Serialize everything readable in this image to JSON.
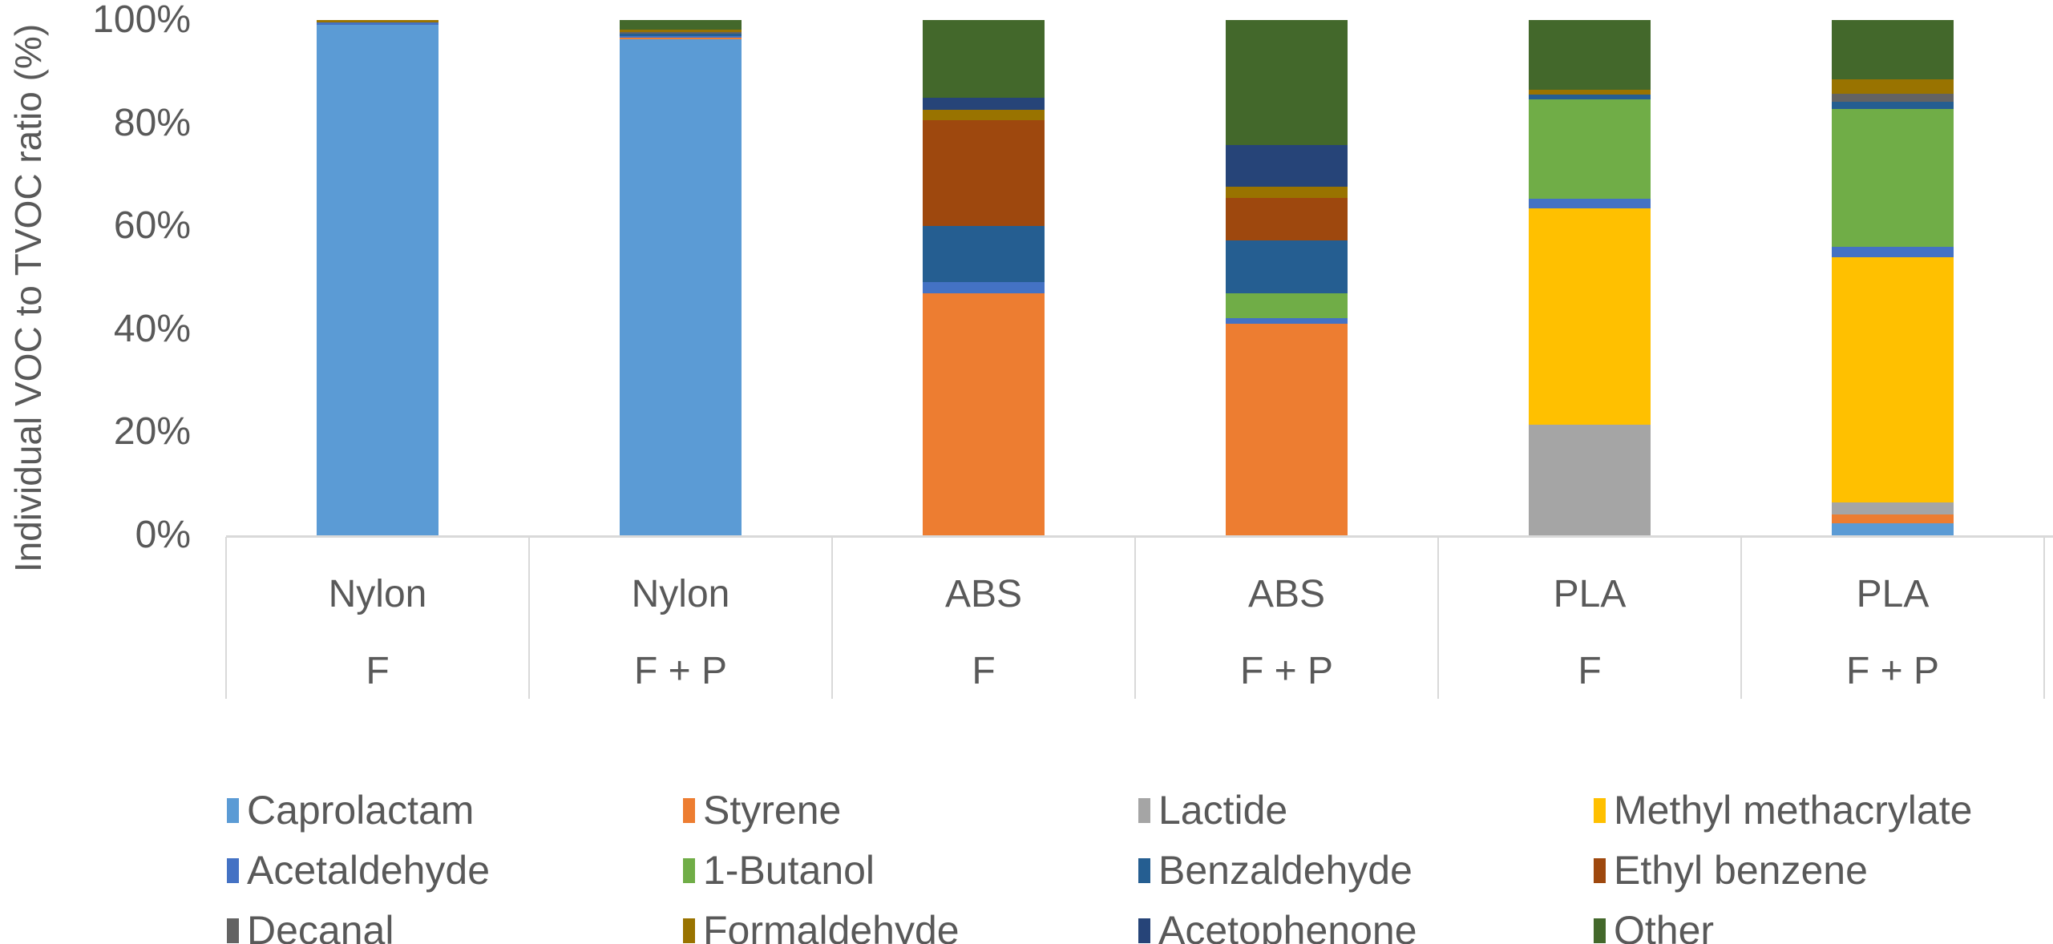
{
  "figure": {
    "background": "#FFFFFF",
    "axis_line_color": "#D9D9D9",
    "text_color": "#595959"
  },
  "chart_data": {
    "type": "bar",
    "stacked": true,
    "title": "",
    "xlabel": "",
    "ylabel": "Individual VOC to TVOC ratio (%)",
    "ylim": [
      0,
      100
    ],
    "grid": false,
    "legend_position": "bottom",
    "yticks": [
      {
        "label": "0%",
        "value": 0
      },
      {
        "label": "20%",
        "value": 20
      },
      {
        "label": "40%",
        "value": 40
      },
      {
        "label": "60%",
        "value": 60
      },
      {
        "label": "80%",
        "value": 80
      },
      {
        "label": "100%",
        "value": 100
      }
    ],
    "categories": [
      {
        "material": "Nylon",
        "condition": "F"
      },
      {
        "material": "Nylon",
        "condition": "F + P"
      },
      {
        "material": "ABS",
        "condition": "F"
      },
      {
        "material": "ABS",
        "condition": "F + P"
      },
      {
        "material": "PLA",
        "condition": "F"
      },
      {
        "material": "PLA",
        "condition": "F + P"
      }
    ],
    "series": [
      {
        "name": "Caprolactam",
        "color": "#5B9BD5",
        "values": [
          99.0,
          96.3,
          0,
          0,
          0,
          2.4
        ]
      },
      {
        "name": "Styrene",
        "color": "#ED7D31",
        "values": [
          0,
          0.3,
          46.9,
          41.0,
          0,
          1.6
        ]
      },
      {
        "name": "Lactide",
        "color": "#A5A5A5",
        "values": [
          0,
          0,
          0,
          0,
          21.5,
          2.3
        ]
      },
      {
        "name": "Methyl methacrylate",
        "color": "#FFC000",
        "values": [
          0,
          0,
          0,
          0,
          42.0,
          47.6
        ]
      },
      {
        "name": "Acetaldehyde",
        "color": "#4472C4",
        "values": [
          0.6,
          0.3,
          2.2,
          1.1,
          1.8,
          2.1
        ]
      },
      {
        "name": "1-Butanol",
        "color": "#70AD47",
        "values": [
          0,
          0,
          0,
          4.9,
          19.3,
          26.7
        ]
      },
      {
        "name": "Benzaldehyde",
        "color": "#255E91",
        "values": [
          0,
          0.4,
          10.9,
          10.2,
          1.0,
          1.4
        ]
      },
      {
        "name": "Ethyl benzene",
        "color": "#9E480E",
        "values": [
          0,
          0,
          20.6,
          8.3,
          0,
          0
        ]
      },
      {
        "name": "Decanal",
        "color": "#636363",
        "values": [
          0,
          0.4,
          0,
          0,
          0,
          1.6
        ]
      },
      {
        "name": "Formaldehyde",
        "color": "#997300",
        "values": [
          0.4,
          0.4,
          2.0,
          2.1,
          0.8,
          2.8
        ]
      },
      {
        "name": "Acetophenone",
        "color": "#264478",
        "values": [
          0,
          0,
          2.3,
          8.2,
          0,
          0
        ]
      },
      {
        "name": "Other",
        "color": "#43682B",
        "values": [
          0,
          1.9,
          15.1,
          24.2,
          13.6,
          11.5
        ]
      }
    ],
    "legend_rows": [
      [
        "Caprolactam",
        "Styrene",
        "Lactide",
        "Methyl methacrylate"
      ],
      [
        "Acetaldehyde",
        "1-Butanol",
        "Benzaldehyde",
        "Ethyl benzene"
      ],
      [
        "Decanal",
        "Formaldehyde",
        "Acetophenone",
        "Other"
      ]
    ]
  }
}
